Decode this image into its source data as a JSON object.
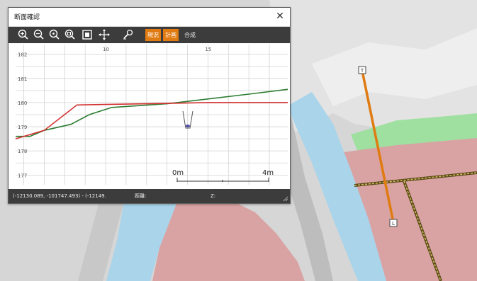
{
  "window": {
    "title": "断面確認",
    "close_glyph": "✕"
  },
  "toolbar": {
    "icons": [
      "zoom-in-icon",
      "zoom-out-icon",
      "zoom-reset-icon",
      "zoom-fit-icon",
      "fullscreen-icon",
      "pan-icon",
      "measure-icon"
    ],
    "modes": [
      {
        "label": "現況",
        "active": true
      },
      {
        "label": "計画",
        "active": true
      },
      {
        "label": "合成",
        "active": false
      }
    ],
    "active_color": "#e07b12"
  },
  "profile": {
    "x_ticks": [
      "10",
      "15"
    ],
    "y_ticks": [
      "182",
      "181",
      "180",
      "179",
      "178",
      "177"
    ],
    "scale_start": "0m",
    "scale_end": "4m",
    "series": [
      {
        "color": "#2e7d32",
        "points": [
          [
            5.6,
            178.6
          ],
          [
            6.3,
            178.6
          ],
          [
            7.0,
            178.85
          ],
          [
            8.3,
            179.1
          ],
          [
            9.2,
            179.5
          ],
          [
            10.3,
            179.8
          ],
          [
            13.0,
            179.95
          ],
          [
            15.0,
            180.15
          ],
          [
            17.0,
            180.35
          ],
          [
            18.9,
            180.55
          ]
        ]
      },
      {
        "color": "#d32f2f",
        "points": [
          [
            5.6,
            178.5
          ],
          [
            7.0,
            178.85
          ],
          [
            8.6,
            179.9
          ],
          [
            12.0,
            179.95
          ],
          [
            15.0,
            180.0
          ],
          [
            18.9,
            180.0
          ]
        ]
      }
    ],
    "x_range": [
      5.6,
      18.9
    ],
    "y_range": [
      176.6,
      182.4
    ]
  },
  "status": {
    "coords": "(-12130.089, -101747.493) - (-12149.",
    "distance_label": "距離:",
    "z_label": "Z:"
  },
  "map": {
    "colors": {
      "ground": "#d8d8d8",
      "river": "#a9d4ea",
      "pink": "#d9a3a3",
      "green": "#9fe0a0",
      "line": "#e07b12"
    },
    "line_start_label": "T",
    "line_end_label": "L"
  }
}
